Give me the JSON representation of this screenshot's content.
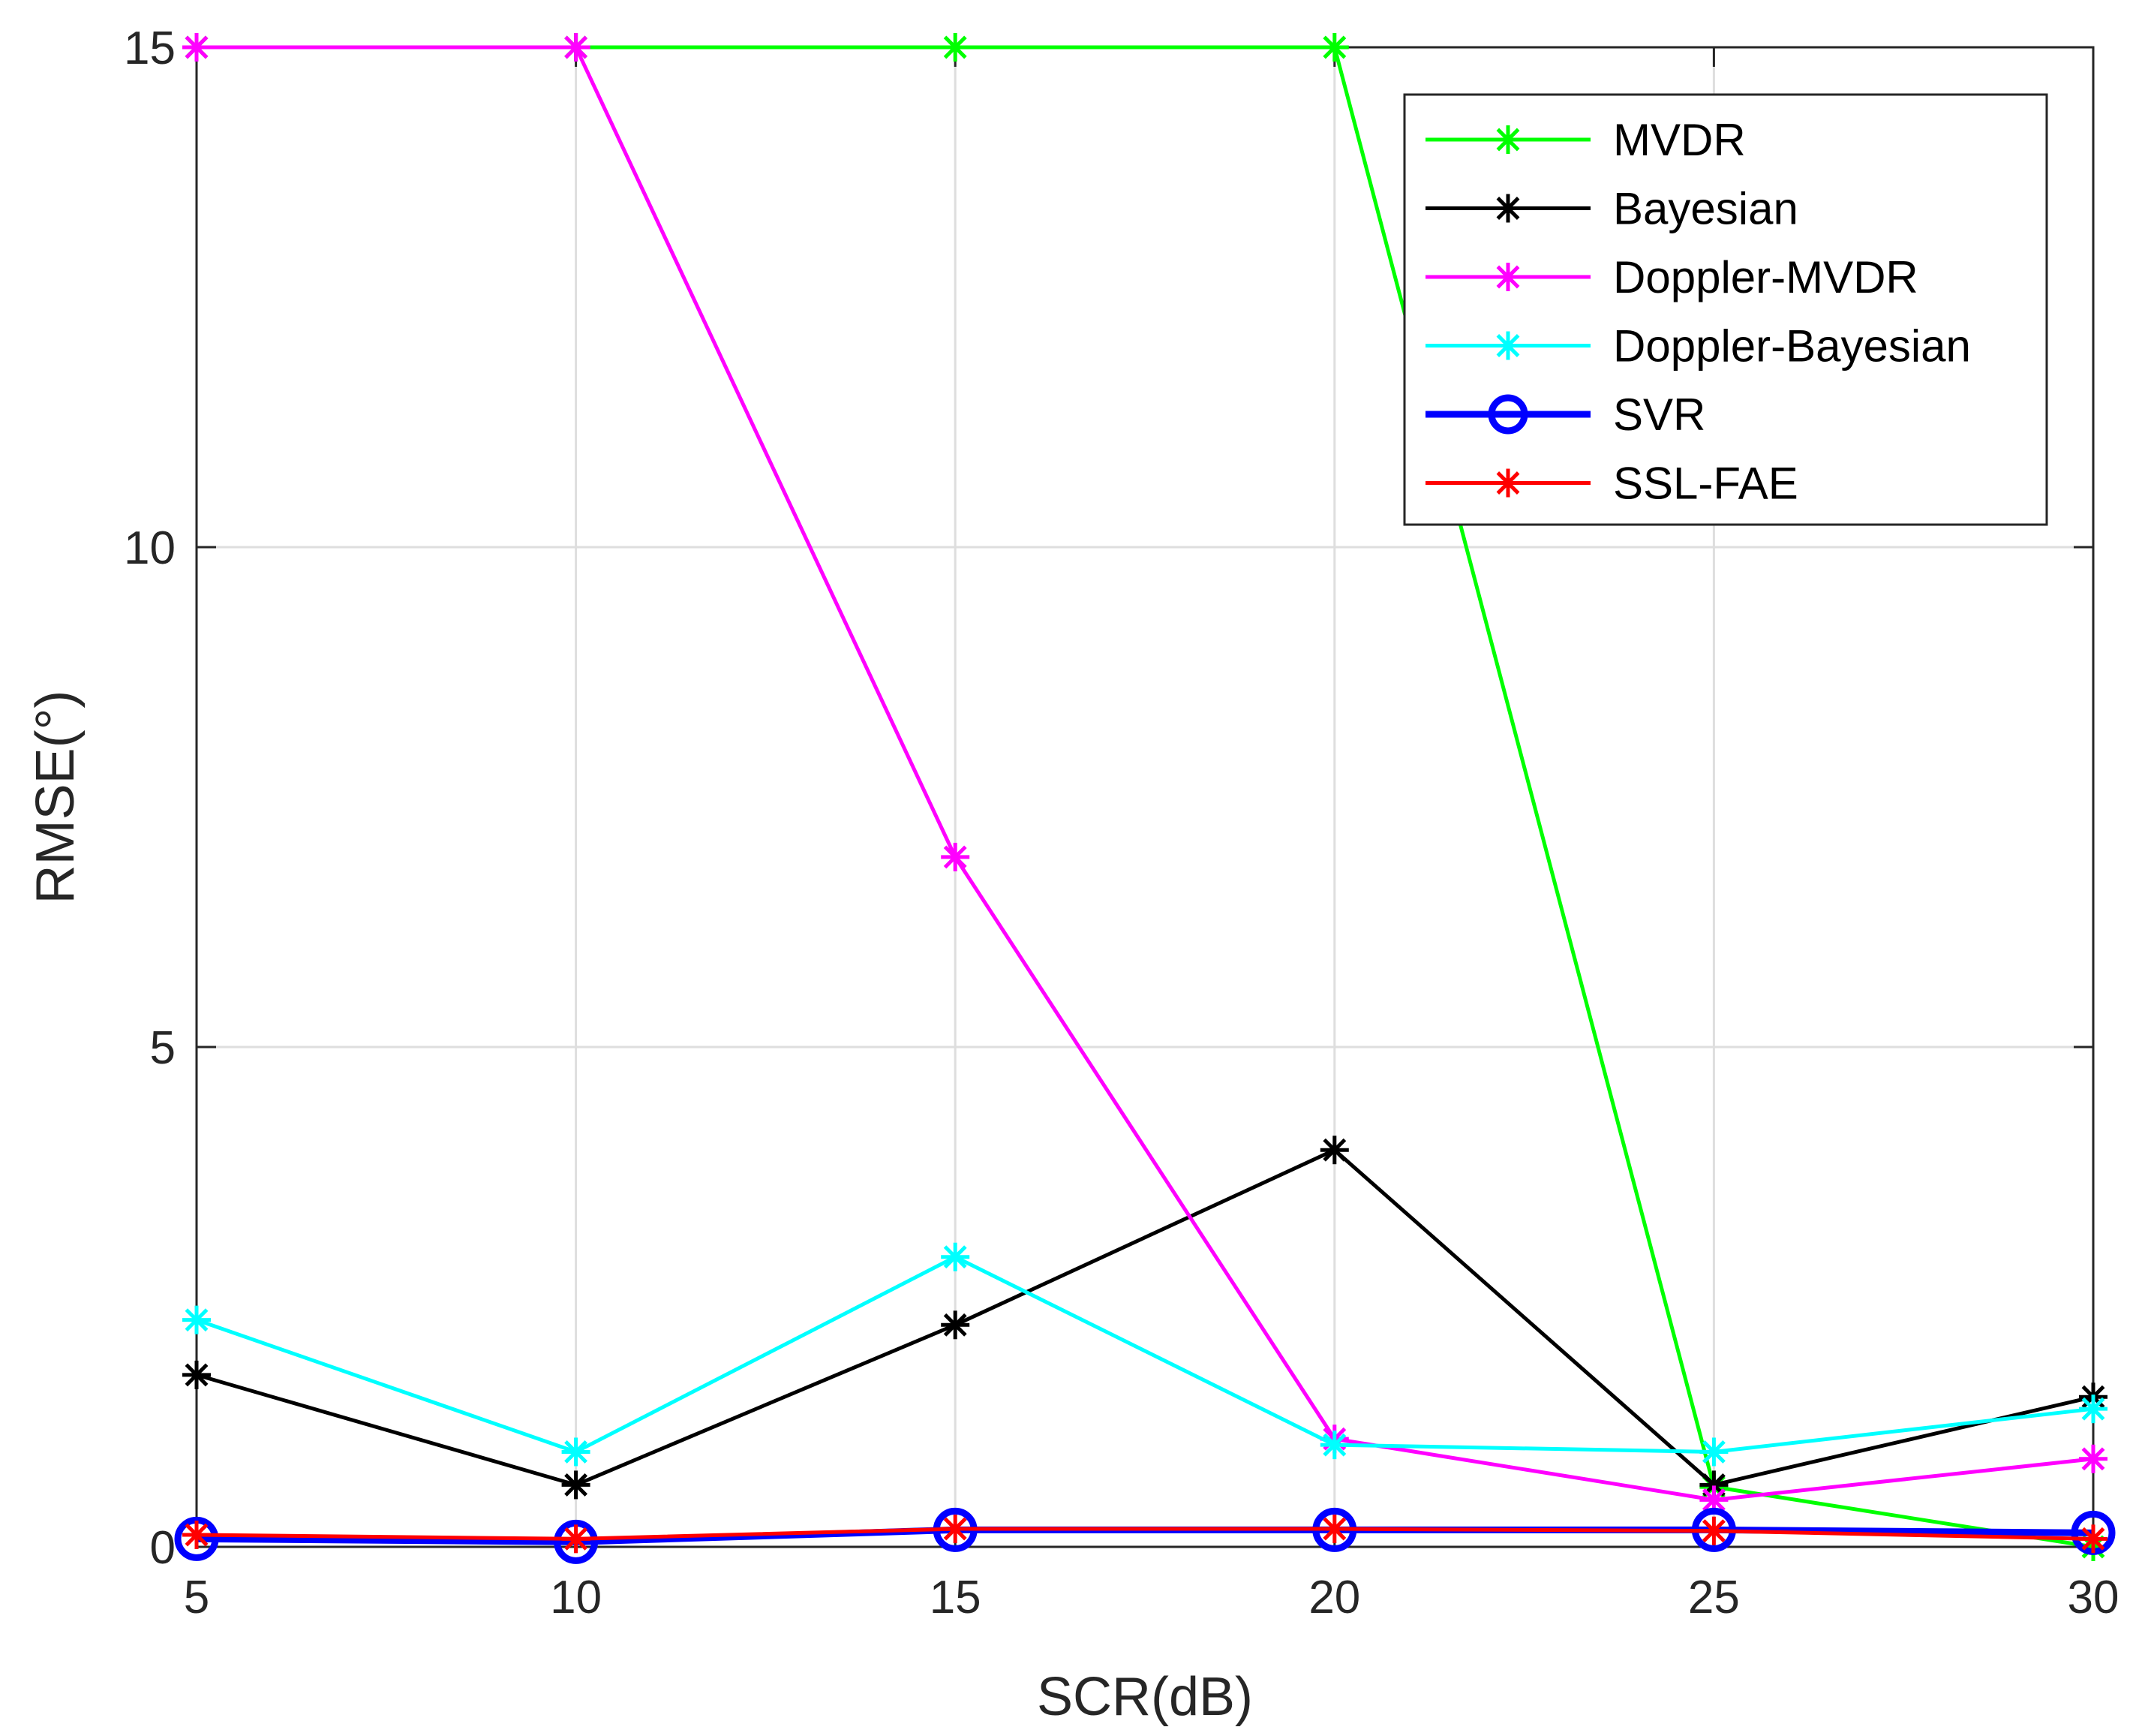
{
  "chart_data": {
    "type": "line",
    "title": "",
    "xlabel": "SCR(dB)",
    "ylabel": "RMSE(°)",
    "xlim": [
      5,
      30
    ],
    "ylim": [
      0,
      15
    ],
    "xticks": [
      5,
      10,
      15,
      20,
      25,
      30
    ],
    "yticks": [
      0,
      5,
      10,
      15
    ],
    "grid": true,
    "legend_position": "top-right",
    "x": [
      5,
      10,
      15,
      20,
      25,
      30
    ],
    "series": [
      {
        "name": "MVDR",
        "color": "#00ff00",
        "marker": "asterisk",
        "values": [
          15,
          15,
          15,
          15,
          0.6,
          0.0
        ]
      },
      {
        "name": "Bayesian",
        "color": "#000000",
        "marker": "asterisk",
        "values": [
          1.72,
          0.62,
          2.22,
          3.97,
          0.62,
          1.5
        ]
      },
      {
        "name": "Doppler-MVDR",
        "color": "#ff00ff",
        "marker": "asterisk",
        "values": [
          15,
          15,
          6.9,
          1.08,
          0.47,
          0.88
        ]
      },
      {
        "name": "Doppler-Bayesian",
        "color": "#00ffff",
        "marker": "asterisk",
        "values": [
          2.27,
          0.95,
          2.9,
          1.02,
          0.95,
          1.38
        ]
      },
      {
        "name": "SVR",
        "color": "#0000ff",
        "marker": "circle",
        "values": [
          0.08,
          0.05,
          0.17,
          0.17,
          0.17,
          0.14
        ]
      },
      {
        "name": "SSL-FAE",
        "color": "#ff0000",
        "marker": "asterisk",
        "values": [
          0.12,
          0.08,
          0.18,
          0.18,
          0.16,
          0.08
        ]
      }
    ]
  }
}
